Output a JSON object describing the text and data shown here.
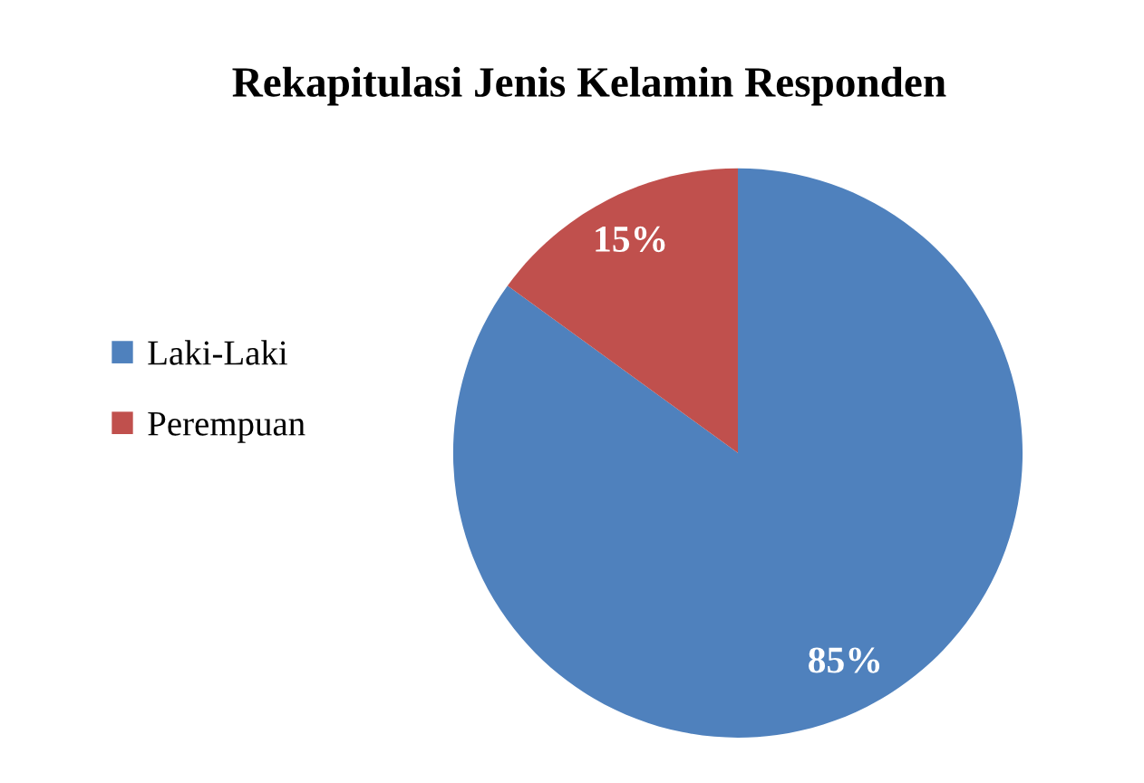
{
  "chart_data": {
    "type": "pie",
    "title": "Rekapitulasi Jenis Kelamin Responden",
    "categories": [
      "Laki-Laki",
      "Perempuan"
    ],
    "values": [
      85,
      15
    ],
    "value_labels": [
      "85%",
      "15%"
    ],
    "colors": [
      "#4f81bd",
      "#c0504d"
    ],
    "legend": "left"
  }
}
